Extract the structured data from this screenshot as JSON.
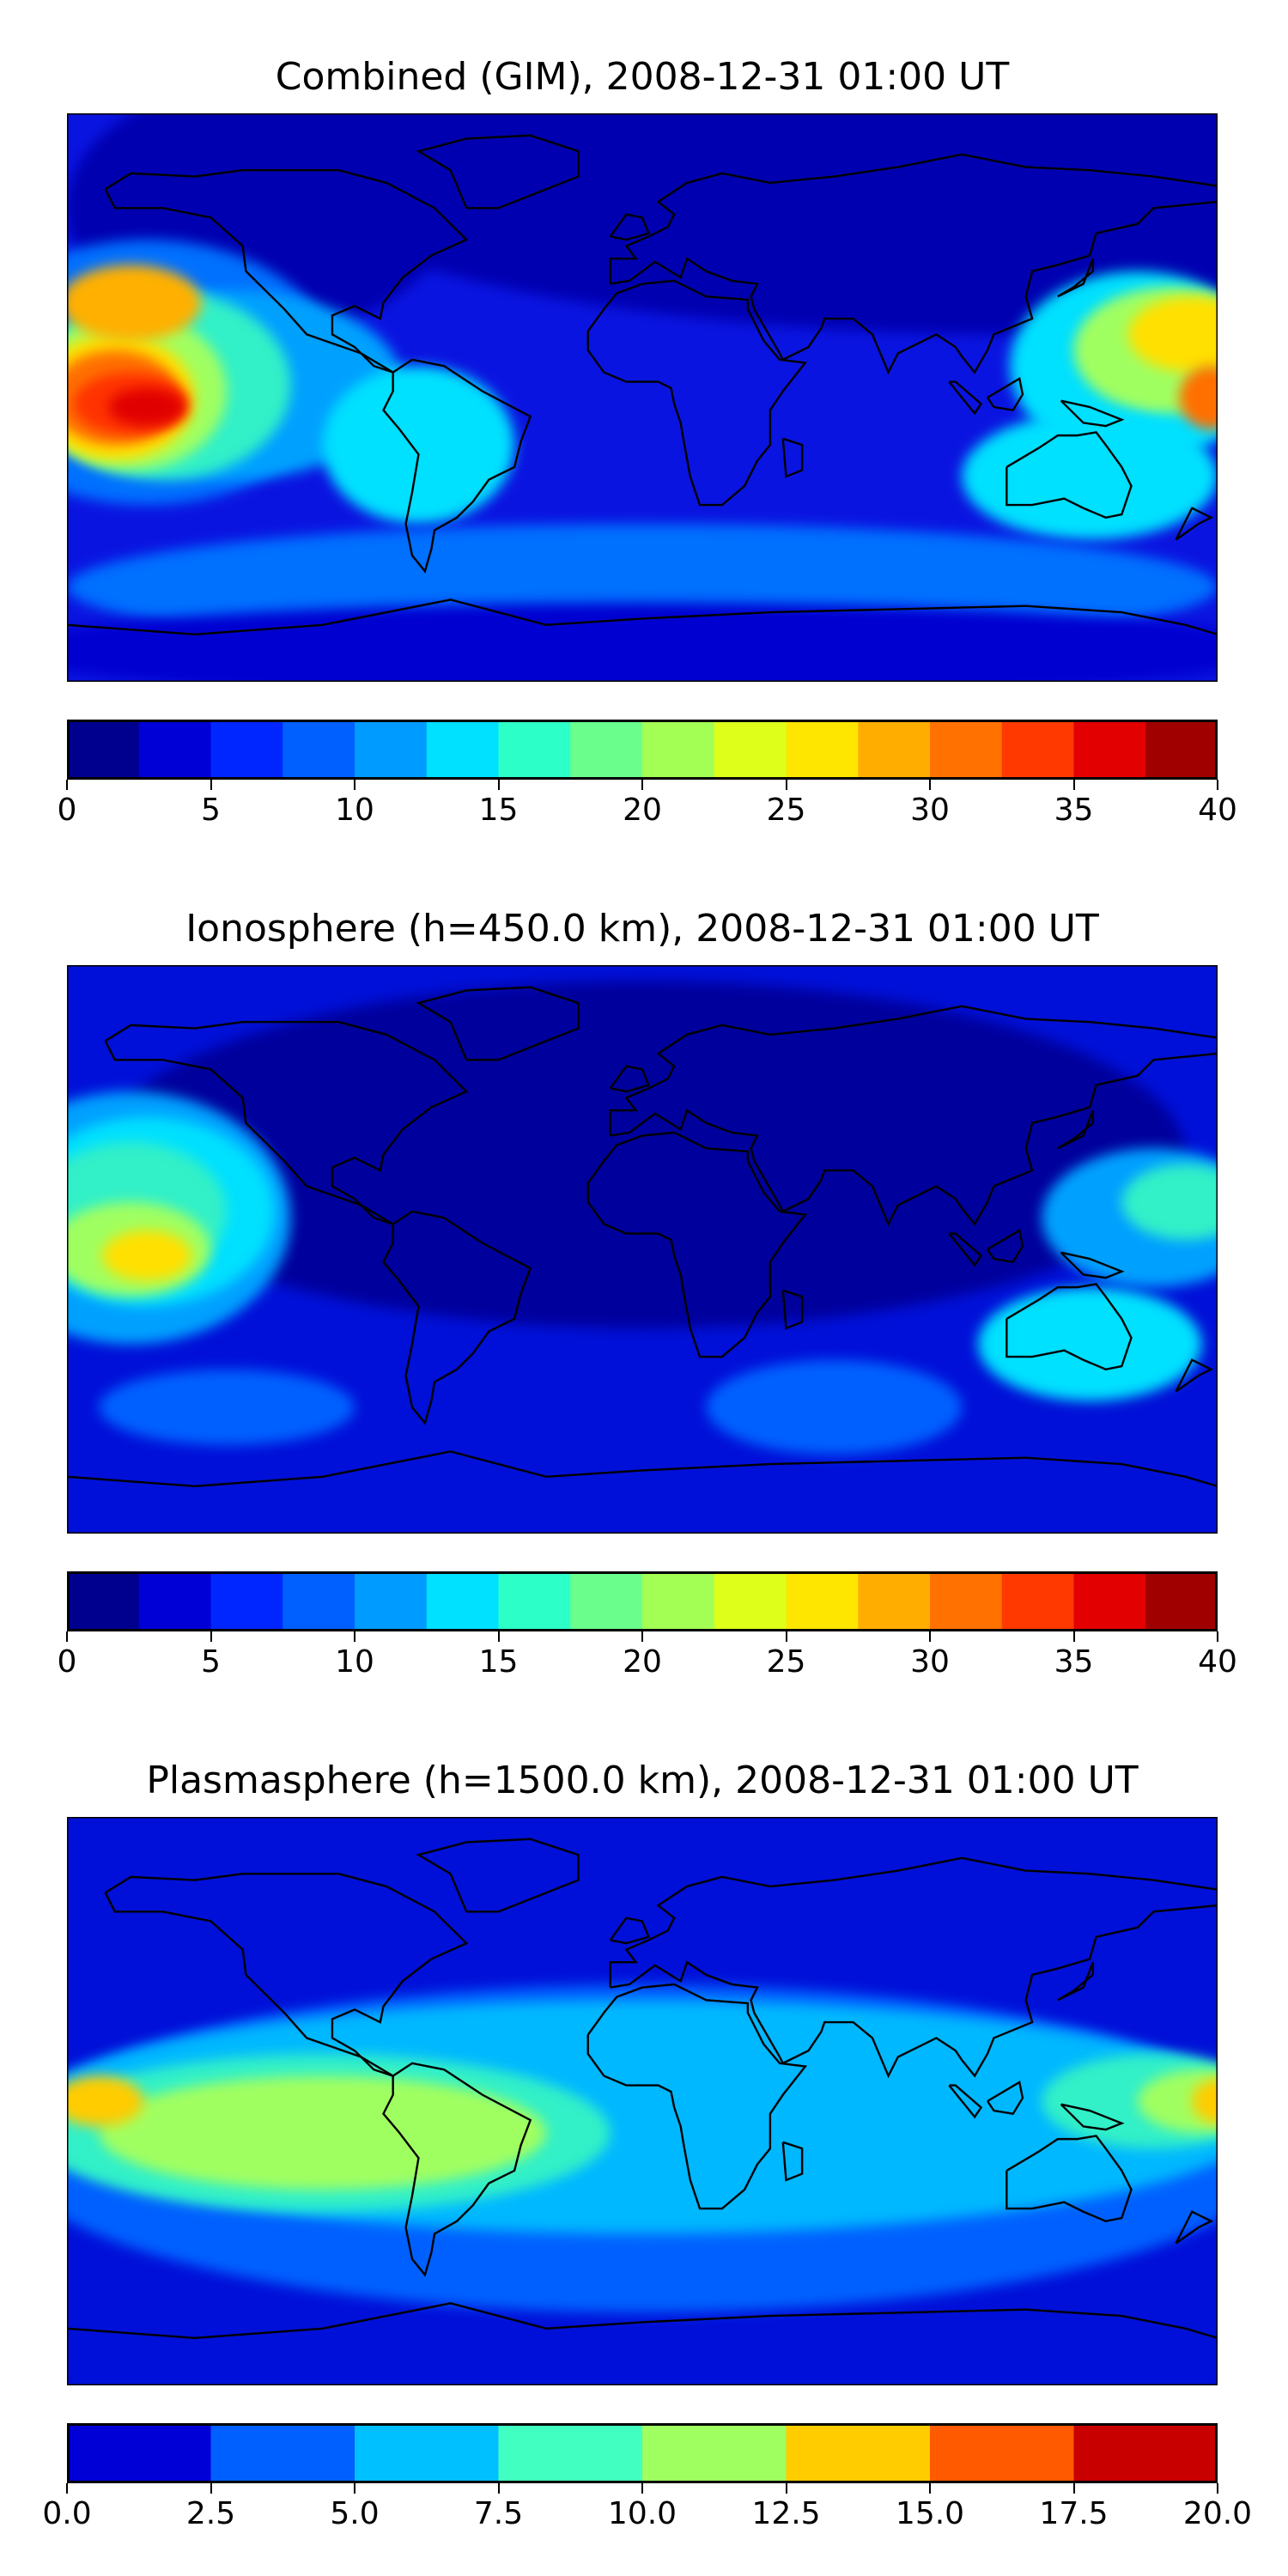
{
  "panels": [
    {
      "title": "Combined (GIM), 2008-12-31 01:00 UT",
      "base_color": "#0a14e0",
      "blobs": [
        {
          "lon": 120,
          "lat": 70,
          "rx": 230,
          "ry": 50,
          "color": "#0000b0"
        },
        {
          "lon": -120,
          "lat": 60,
          "rx": 60,
          "ry": 40,
          "color": "#0000b0"
        },
        {
          "lon": -155,
          "lat": 8,
          "rx": 60,
          "ry": 42,
          "color": "#0070ff"
        },
        {
          "lon": -130,
          "lat": 4,
          "rx": 55,
          "ry": 30,
          "color": "#00a0ff"
        },
        {
          "lon": -150,
          "lat": 4,
          "rx": 40,
          "ry": 30,
          "color": "#30f0c8"
        },
        {
          "lon": -160,
          "lat": 2,
          "rx": 30,
          "ry": 25,
          "color": "#a0ff60"
        },
        {
          "lon": -165,
          "lat": 0,
          "rx": 25,
          "ry": 20,
          "color": "#ffe000"
        },
        {
          "lon": -160,
          "lat": 30,
          "rx": 22,
          "ry": 12,
          "color": "#ffb000"
        },
        {
          "lon": -165,
          "lat": 0,
          "rx": 20,
          "ry": 15,
          "color": "#ff7000"
        },
        {
          "lon": -160,
          "lat": -2,
          "rx": 18,
          "ry": 10,
          "color": "#ff3000"
        },
        {
          "lon": -155,
          "lat": -3,
          "rx": 12,
          "ry": 6,
          "color": "#e00000"
        },
        {
          "lon": -70,
          "lat": -15,
          "rx": 30,
          "ry": 25,
          "color": "#00e0ff"
        },
        {
          "lon": 155,
          "lat": 10,
          "rx": 40,
          "ry": 30,
          "color": "#00e0ff"
        },
        {
          "lon": 165,
          "lat": 15,
          "rx": 30,
          "ry": 20,
          "color": "#a0ff60"
        },
        {
          "lon": 172,
          "lat": 20,
          "rx": 20,
          "ry": 12,
          "color": "#ffe000"
        },
        {
          "lon": 178,
          "lat": 0,
          "rx": 10,
          "ry": 10,
          "color": "#ff7000"
        },
        {
          "lon": 140,
          "lat": -25,
          "rx": 40,
          "ry": 20,
          "color": "#00e0ff"
        },
        {
          "lon": 0,
          "lat": -60,
          "rx": 180,
          "ry": 20,
          "color": "#0070ff"
        },
        {
          "lon": 0,
          "lat": -80,
          "rx": 200,
          "ry": 15,
          "color": "#0000d0"
        }
      ],
      "colorbar": {
        "colors": [
          "#00008f",
          "#0000d6",
          "#0026ff",
          "#0060ff",
          "#009bff",
          "#00e0ff",
          "#2cffc8",
          "#6aff8d",
          "#a3ff54",
          "#ddff1a",
          "#ffe600",
          "#ffae00",
          "#ff7100",
          "#ff3900",
          "#e30000",
          "#a10000"
        ],
        "ticks": [
          0,
          5,
          10,
          15,
          20,
          25,
          30,
          35,
          40
        ],
        "min": 0,
        "max": 40
      }
    },
    {
      "title": "Ionosphere  (h=450.0 km), 2008-12-31 01:00 UT",
      "base_color": "#0010d8",
      "blobs": [
        {
          "lon": 0,
          "lat": 30,
          "rx": 170,
          "ry": 55,
          "color": "#00009c"
        },
        {
          "lon": -160,
          "lat": 10,
          "rx": 50,
          "ry": 40,
          "color": "#00a0ff"
        },
        {
          "lon": -155,
          "lat": 12,
          "rx": 40,
          "ry": 30,
          "color": "#00e0ff"
        },
        {
          "lon": -160,
          "lat": 12,
          "rx": 30,
          "ry": 22,
          "color": "#30f0c8"
        },
        {
          "lon": -160,
          "lat": 0,
          "rx": 25,
          "ry": 15,
          "color": "#a0ff60"
        },
        {
          "lon": -155,
          "lat": -2,
          "rx": 14,
          "ry": 8,
          "color": "#ffe000"
        },
        {
          "lon": 160,
          "lat": 10,
          "rx": 35,
          "ry": 22,
          "color": "#00a0ff"
        },
        {
          "lon": 170,
          "lat": 15,
          "rx": 20,
          "ry": 12,
          "color": "#30f0c8"
        },
        {
          "lon": 140,
          "lat": -30,
          "rx": 35,
          "ry": 18,
          "color": "#00e0ff"
        },
        {
          "lon": 60,
          "lat": -50,
          "rx": 40,
          "ry": 15,
          "color": "#0060ff"
        },
        {
          "lon": -130,
          "lat": -50,
          "rx": 40,
          "ry": 12,
          "color": "#0060ff"
        }
      ],
      "colorbar": {
        "colors": [
          "#00008f",
          "#0000d6",
          "#0026ff",
          "#0060ff",
          "#009bff",
          "#00e0ff",
          "#2cffc8",
          "#6aff8d",
          "#a3ff54",
          "#ddff1a",
          "#ffe600",
          "#ffae00",
          "#ff7100",
          "#ff3900",
          "#e30000",
          "#a10000"
        ],
        "ticks": [
          0,
          5,
          10,
          15,
          20,
          25,
          30,
          35,
          40
        ],
        "min": 0,
        "max": 40
      }
    },
    {
      "title": "Plasmasphere (h=1500.0 km), 2008-12-31 01:00 UT",
      "base_color": "#0010d8",
      "blobs": [
        {
          "lon": 0,
          "lat": -15,
          "rx": 200,
          "ry": 52,
          "color": "#0060ff"
        },
        {
          "lon": 0,
          "lat": -5,
          "rx": 195,
          "ry": 37,
          "color": "#00b8ff"
        },
        {
          "lon": -100,
          "lat": -10,
          "rx": 90,
          "ry": 25,
          "color": "#30f0c8"
        },
        {
          "lon": -100,
          "lat": -10,
          "rx": 70,
          "ry": 18,
          "color": "#a0ff60"
        },
        {
          "lon": 160,
          "lat": 0,
          "rx": 35,
          "ry": 15,
          "color": "#30f0c8"
        },
        {
          "lon": 175,
          "lat": 0,
          "rx": 20,
          "ry": 10,
          "color": "#a0ff60"
        },
        {
          "lon": -170,
          "lat": 0,
          "rx": 14,
          "ry": 8,
          "color": "#ffcc00"
        },
        {
          "lon": 180,
          "lat": 0,
          "rx": 8,
          "ry": 7,
          "color": "#ffcc00"
        }
      ],
      "colorbar": {
        "colors": [
          "#0000d6",
          "#0060ff",
          "#00c0ff",
          "#40ffc0",
          "#a0ff60",
          "#ffcc00",
          "#ff5a00",
          "#c80000"
        ],
        "ticks": [
          "0.0",
          "2.5",
          "5.0",
          "7.5",
          "10.0",
          "12.5",
          "15.0",
          "17.5",
          "20.0"
        ],
        "min": 0,
        "max": 20
      }
    }
  ]
}
